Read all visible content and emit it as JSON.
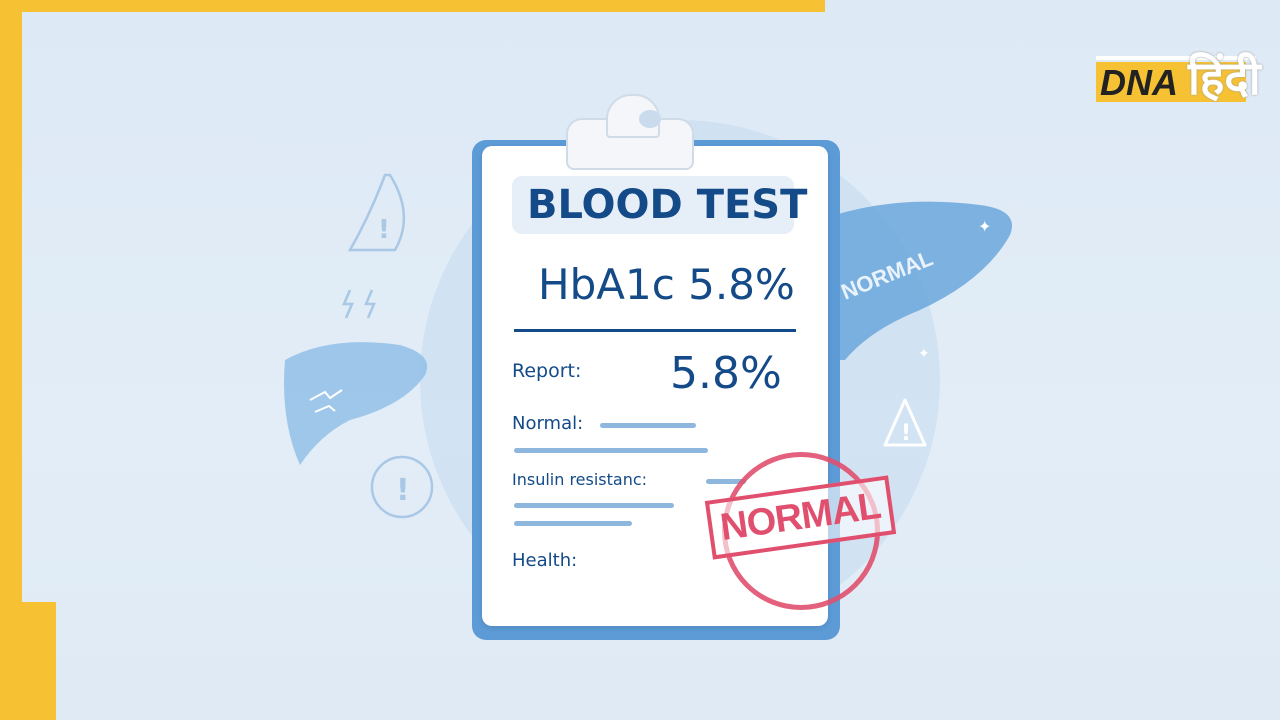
{
  "logo": {
    "brand": "DNA",
    "hindi": "हिंदी"
  },
  "clipboard": {
    "title": "BLOOD TEST",
    "headline": "HbA1c 5.8%",
    "report_label": "Report:",
    "report_value": "5.8%",
    "normal_label": "Normal:",
    "insulin_label": "Insulin resistanc:",
    "health_label": "Health:"
  },
  "stamp": {
    "text": "NORMAL"
  },
  "liver_label": "NORMAL",
  "colors": {
    "frame": "#f6c233",
    "primary_text": "#134a87",
    "stamp": "#e0506e",
    "board": "#5c9bd6",
    "background": "#dde9f5"
  }
}
